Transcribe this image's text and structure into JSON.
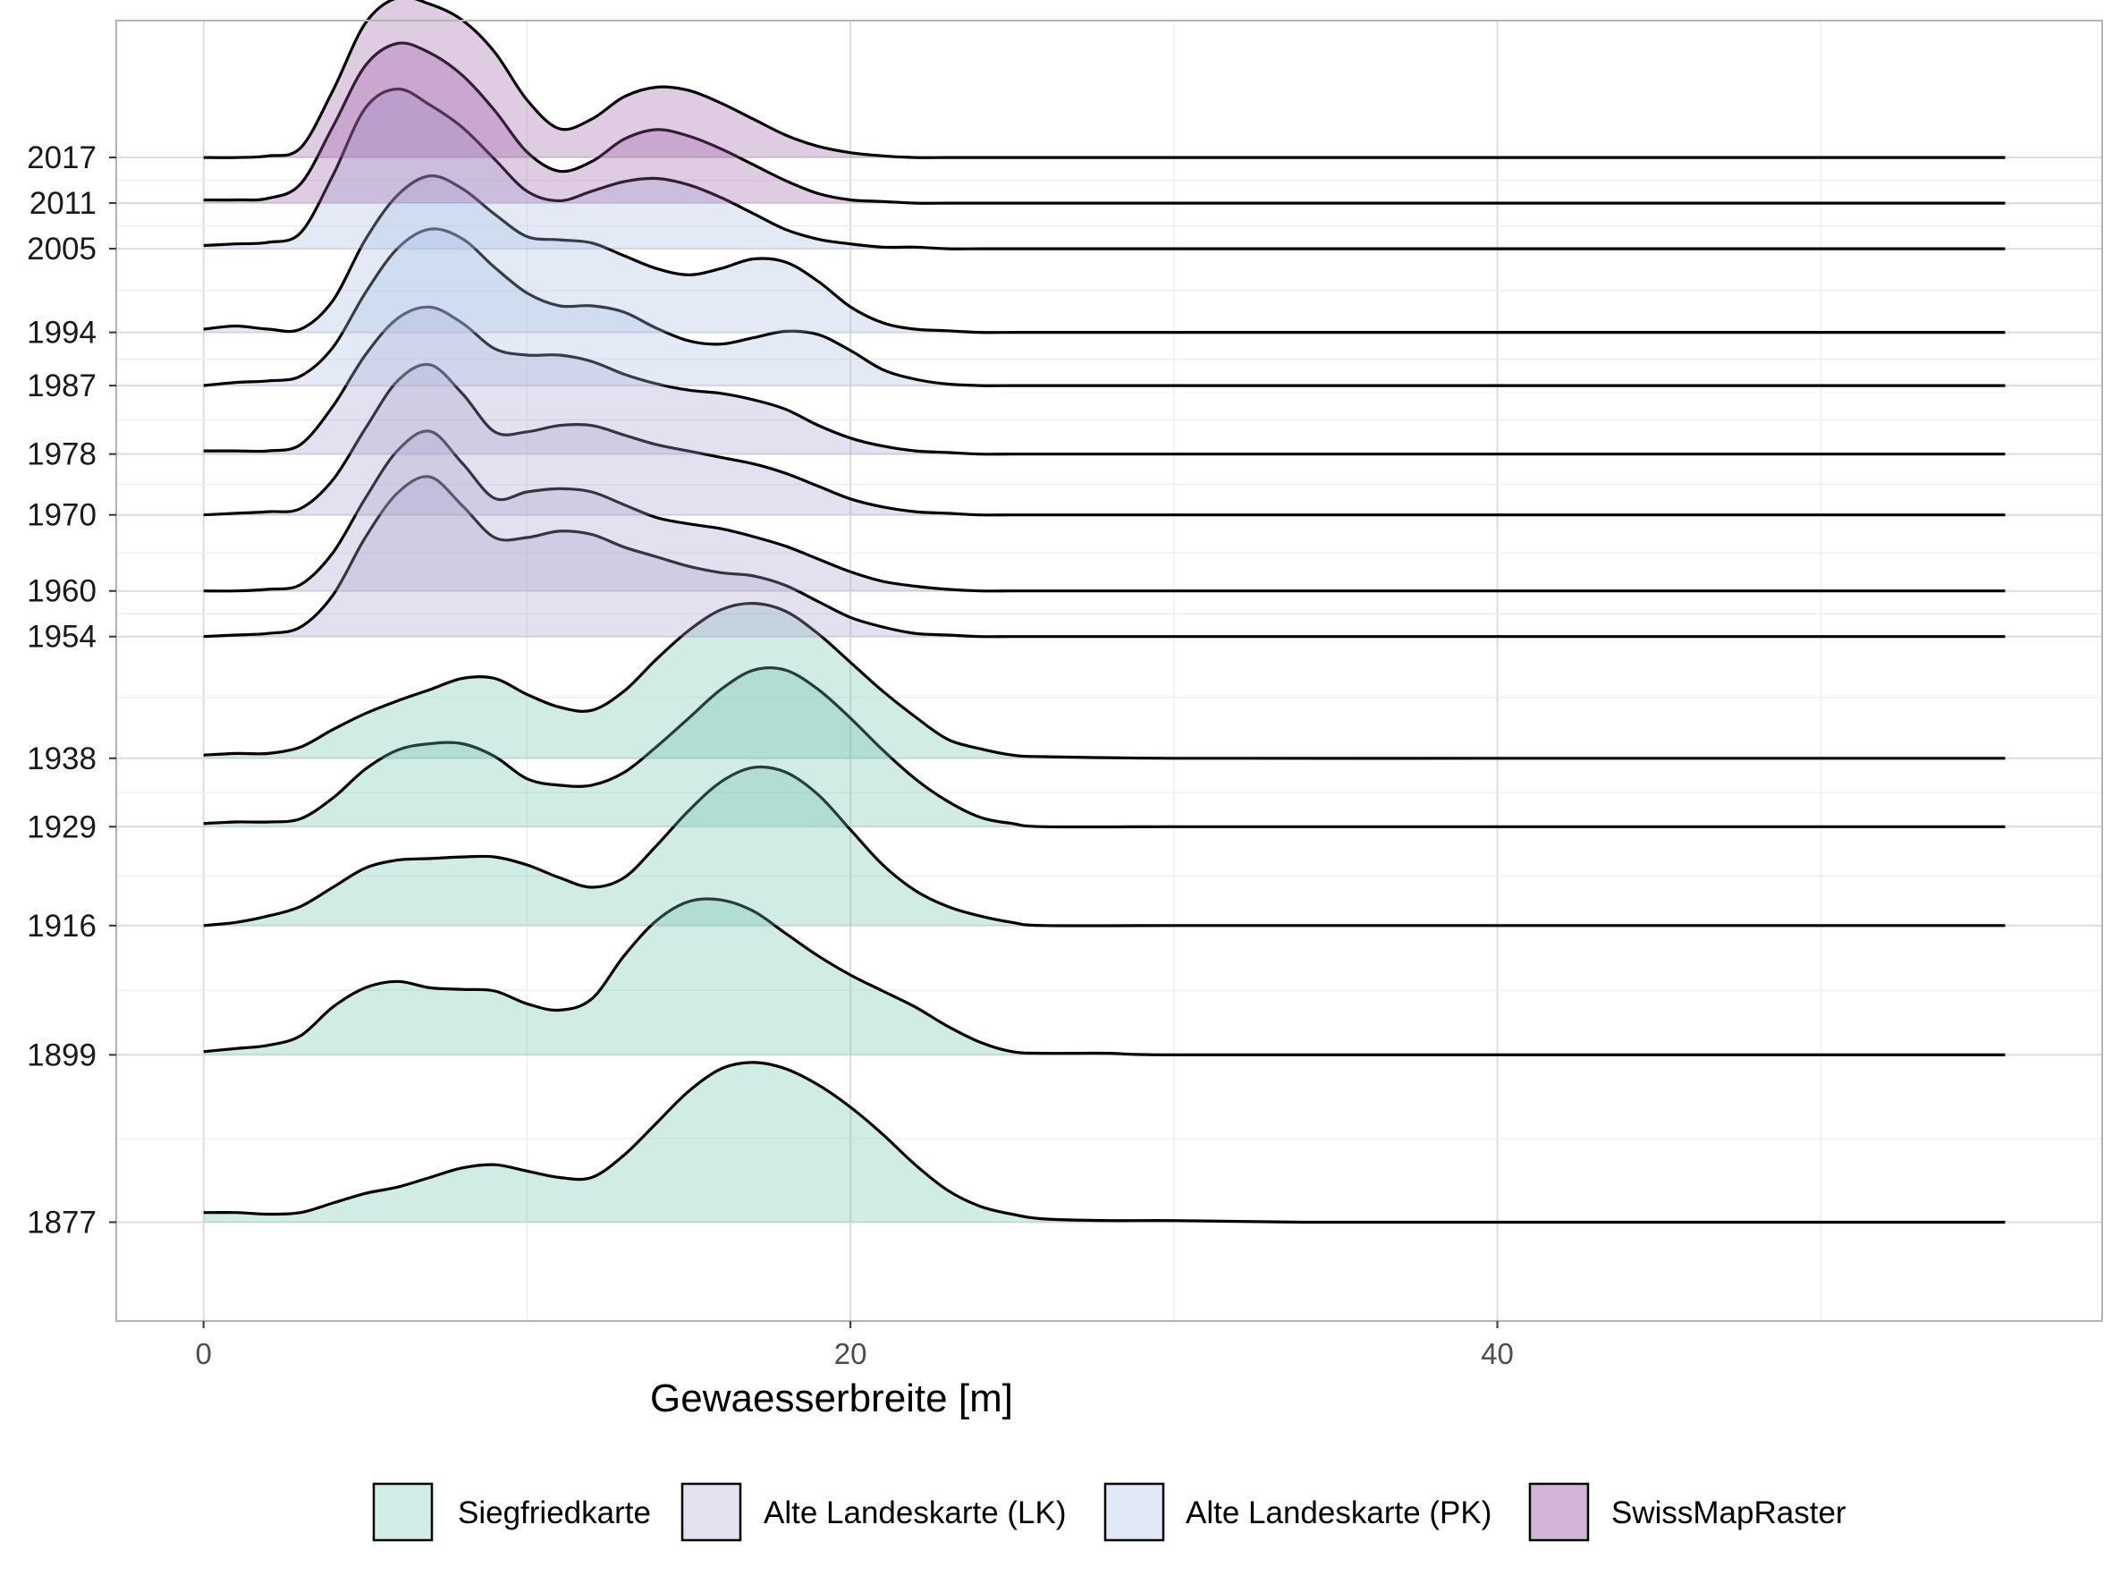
{
  "chart_data": {
    "type": "ridgeline",
    "xlabel": "Gewaesserbreite [m]",
    "ylabel": "",
    "xlim": [
      -2.7,
      58.7
    ],
    "x_ticks": [
      0,
      20,
      40
    ],
    "grid": true,
    "legend_position": "bottom",
    "legend": [
      {
        "name": "Siegfriedkarte",
        "color": "#d2ece7"
      },
      {
        "name": "Alte Landeskarte (LK)",
        "color": "#e3e1ef"
      },
      {
        "name": "Alte Landeskarte (PK)",
        "color": "#e1e9f6"
      },
      {
        "name": "SwissMapRaster",
        "color": "#d4b3d8"
      }
    ],
    "y_categories": [
      "1877",
      "1899",
      "1916",
      "1929",
      "1938",
      "1954",
      "1960",
      "1970",
      "1978",
      "1987",
      "1994",
      "2005",
      "2011",
      "2017"
    ],
    "series": [
      {
        "year": "1877",
        "map": "Siegfriedkarte",
        "x": [
          0,
          1,
          2,
          3,
          4,
          5,
          6,
          7,
          8,
          9,
          10,
          11,
          12,
          13,
          14,
          15,
          16,
          17,
          18,
          19,
          20,
          21,
          22,
          23,
          24,
          25,
          26,
          28,
          30,
          34,
          40,
          50,
          55.7
        ],
        "density": [
          0.06,
          0.06,
          0.05,
          0.06,
          0.12,
          0.18,
          0.22,
          0.28,
          0.34,
          0.36,
          0.32,
          0.28,
          0.28,
          0.42,
          0.62,
          0.82,
          0.96,
          1.0,
          0.96,
          0.86,
          0.72,
          0.55,
          0.36,
          0.2,
          0.1,
          0.05,
          0.02,
          0.01,
          0.01,
          0,
          0,
          0,
          0
        ]
      },
      {
        "year": "1899",
        "map": "Siegfriedkarte",
        "x": [
          0,
          1,
          2,
          3,
          4,
          5,
          6,
          7,
          8,
          9,
          10,
          11,
          12,
          13,
          14,
          15,
          16,
          17,
          18,
          19,
          20,
          21,
          22,
          23,
          24,
          25,
          26,
          28,
          30,
          40,
          55.7
        ],
        "density": [
          0.02,
          0.04,
          0.06,
          0.12,
          0.3,
          0.42,
          0.46,
          0.42,
          0.41,
          0.4,
          0.32,
          0.28,
          0.35,
          0.62,
          0.84,
          0.96,
          0.97,
          0.9,
          0.76,
          0.62,
          0.5,
          0.4,
          0.3,
          0.18,
          0.08,
          0.02,
          0.01,
          0.01,
          0,
          0,
          0
        ]
      },
      {
        "year": "1916",
        "map": "Siegfriedkarte",
        "x": [
          0,
          1,
          2,
          3,
          4,
          5,
          6,
          7,
          8,
          9,
          10,
          11,
          12,
          13,
          14,
          15,
          16,
          17,
          18,
          19,
          20,
          21,
          22,
          23,
          24,
          25,
          26,
          30,
          40,
          55.7
        ],
        "density": [
          0,
          0.02,
          0.06,
          0.12,
          0.24,
          0.36,
          0.41,
          0.42,
          0.43,
          0.43,
          0.38,
          0.3,
          0.24,
          0.3,
          0.5,
          0.72,
          0.9,
          0.99,
          0.96,
          0.82,
          0.6,
          0.38,
          0.22,
          0.12,
          0.06,
          0.02,
          0,
          0,
          0,
          0
        ]
      },
      {
        "year": "1929",
        "map": "Siegfriedkarte",
        "x": [
          0,
          1,
          2,
          3,
          4,
          5,
          6,
          7,
          8,
          9,
          10,
          11,
          12,
          13,
          14,
          15,
          16,
          17,
          18,
          19,
          20,
          21,
          22,
          23,
          24,
          25,
          26,
          30,
          40,
          55.7
        ],
        "density": [
          0.02,
          0.03,
          0.03,
          0.05,
          0.18,
          0.36,
          0.48,
          0.52,
          0.52,
          0.44,
          0.3,
          0.26,
          0.26,
          0.34,
          0.5,
          0.68,
          0.86,
          0.98,
          0.98,
          0.86,
          0.68,
          0.48,
          0.3,
          0.16,
          0.06,
          0.02,
          0,
          0,
          0,
          0
        ]
      },
      {
        "year": "1938",
        "map": "Siegfriedkarte",
        "x": [
          0,
          1,
          2,
          3,
          4,
          5,
          6,
          7,
          8,
          9,
          10,
          11,
          12,
          13,
          14,
          15,
          16,
          17,
          18,
          19,
          20,
          21,
          22,
          23,
          24,
          25,
          26,
          30,
          40,
          50,
          55.7
        ],
        "density": [
          0.02,
          0.03,
          0.03,
          0.07,
          0.18,
          0.28,
          0.36,
          0.43,
          0.5,
          0.5,
          0.4,
          0.32,
          0.3,
          0.42,
          0.62,
          0.8,
          0.93,
          0.97,
          0.92,
          0.78,
          0.6,
          0.42,
          0.26,
          0.12,
          0.06,
          0.02,
          0.01,
          0,
          0,
          0,
          0
        ]
      },
      {
        "year": "1954",
        "map": "Alte Landeskarte (LK)",
        "x": [
          0,
          1,
          2,
          3,
          4,
          5,
          6,
          7,
          8,
          9,
          10,
          11,
          12,
          13,
          14,
          15,
          16,
          17,
          18,
          19,
          20,
          21,
          22,
          23,
          24,
          25,
          26,
          30,
          40,
          55.7
        ],
        "density": [
          0,
          0.01,
          0.02,
          0.06,
          0.26,
          0.62,
          0.9,
          1.0,
          0.82,
          0.62,
          0.62,
          0.66,
          0.64,
          0.56,
          0.5,
          0.44,
          0.4,
          0.38,
          0.32,
          0.22,
          0.12,
          0.06,
          0.02,
          0.01,
          0,
          0,
          0,
          0,
          0,
          0
        ]
      },
      {
        "year": "1960",
        "map": "Alte Landeskarte (LK)",
        "x": [
          0,
          1,
          2,
          3,
          4,
          5,
          6,
          7,
          8,
          9,
          10,
          11,
          12,
          13,
          14,
          15,
          16,
          17,
          18,
          19,
          20,
          21,
          22,
          23,
          24,
          25,
          26,
          30,
          40,
          55.7
        ],
        "density": [
          0,
          0,
          0.01,
          0.04,
          0.24,
          0.58,
          0.88,
          1.0,
          0.8,
          0.58,
          0.62,
          0.64,
          0.62,
          0.54,
          0.46,
          0.42,
          0.39,
          0.34,
          0.28,
          0.2,
          0.12,
          0.06,
          0.03,
          0.01,
          0,
          0,
          0,
          0,
          0,
          0
        ]
      },
      {
        "year": "1970",
        "map": "Alte Landeskarte (LK)",
        "x": [
          0,
          1,
          2,
          3,
          4,
          5,
          6,
          7,
          8,
          9,
          10,
          11,
          12,
          13,
          14,
          15,
          16,
          17,
          18,
          19,
          20,
          21,
          22,
          23,
          24,
          25,
          26,
          30,
          40,
          55.7
        ],
        "density": [
          0,
          0.01,
          0.02,
          0.04,
          0.22,
          0.54,
          0.84,
          0.94,
          0.76,
          0.52,
          0.52,
          0.56,
          0.56,
          0.5,
          0.44,
          0.4,
          0.36,
          0.32,
          0.26,
          0.18,
          0.1,
          0.05,
          0.02,
          0.01,
          0,
          0,
          0,
          0,
          0,
          0
        ]
      },
      {
        "year": "1978",
        "map": "Alte Landeskarte (LK)",
        "x": [
          0,
          1,
          2,
          3,
          4,
          5,
          6,
          7,
          8,
          9,
          10,
          11,
          12,
          13,
          14,
          15,
          16,
          17,
          18,
          19,
          20,
          21,
          22,
          23,
          24,
          25,
          26,
          30,
          40,
          55.7
        ],
        "density": [
          0.02,
          0.02,
          0.02,
          0.06,
          0.3,
          0.62,
          0.85,
          0.92,
          0.82,
          0.66,
          0.62,
          0.62,
          0.58,
          0.5,
          0.44,
          0.4,
          0.38,
          0.34,
          0.28,
          0.18,
          0.1,
          0.05,
          0.02,
          0.01,
          0,
          0,
          0,
          0,
          0,
          0
        ]
      },
      {
        "year": "1987",
        "map": "Alte Landeskarte (PK)",
        "x": [
          0,
          1,
          2,
          3,
          4,
          5,
          6,
          7,
          8,
          9,
          10,
          11,
          12,
          13,
          14,
          15,
          16,
          17,
          18,
          19,
          20,
          21,
          22,
          23,
          24,
          25,
          26,
          30,
          40,
          55.7
        ],
        "density": [
          0,
          0.02,
          0.03,
          0.06,
          0.24,
          0.58,
          0.86,
          0.98,
          0.92,
          0.74,
          0.58,
          0.5,
          0.5,
          0.46,
          0.36,
          0.28,
          0.26,
          0.3,
          0.34,
          0.32,
          0.22,
          0.1,
          0.04,
          0.01,
          0,
          0,
          0,
          0,
          0,
          0
        ]
      },
      {
        "year": "1994",
        "map": "Alte Landeskarte (PK)",
        "x": [
          0,
          1,
          2,
          3,
          4,
          5,
          6,
          7,
          8,
          9,
          10,
          11,
          12,
          13,
          14,
          15,
          16,
          17,
          18,
          19,
          20,
          21,
          22,
          23,
          24,
          25,
          26,
          30,
          40,
          55.7
        ],
        "density": [
          0.02,
          0.04,
          0.02,
          0.02,
          0.2,
          0.58,
          0.86,
          0.98,
          0.9,
          0.74,
          0.6,
          0.58,
          0.56,
          0.48,
          0.4,
          0.36,
          0.4,
          0.46,
          0.44,
          0.32,
          0.16,
          0.06,
          0.02,
          0.01,
          0,
          0,
          0,
          0,
          0,
          0
        ]
      },
      {
        "year": "2005",
        "map": "Alte Landeskarte (PK)",
        "x": [
          0,
          1,
          2,
          3,
          4,
          5,
          6,
          7,
          8,
          9,
          10,
          11,
          12,
          13,
          14,
          15,
          16,
          17,
          18,
          19,
          20,
          21,
          22,
          23,
          24,
          25,
          26,
          30,
          40,
          55.7
        ],
        "density": [
          0.02,
          0.03,
          0.04,
          0.1,
          0.46,
          0.88,
          1.0,
          0.9,
          0.76,
          0.56,
          0.36,
          0.3,
          0.36,
          0.42,
          0.44,
          0.4,
          0.32,
          0.22,
          0.12,
          0.06,
          0.03,
          0.01,
          0.01,
          0,
          0,
          0,
          0,
          0,
          0,
          0
        ]
      },
      {
        "year": "2011",
        "map": "SwissMapRaster",
        "x": [
          0,
          1,
          2,
          3,
          4,
          5,
          6,
          7,
          8,
          9,
          10,
          11,
          12,
          13,
          14,
          15,
          16,
          17,
          18,
          19,
          20,
          21,
          22,
          23,
          24,
          25,
          26,
          30,
          40,
          55.7
        ],
        "density": [
          0.02,
          0.02,
          0.03,
          0.12,
          0.48,
          0.86,
          1.0,
          0.94,
          0.8,
          0.58,
          0.32,
          0.2,
          0.26,
          0.4,
          0.46,
          0.42,
          0.34,
          0.24,
          0.14,
          0.06,
          0.02,
          0.01,
          0,
          0,
          0,
          0,
          0,
          0,
          0,
          0
        ]
      },
      {
        "year": "2017",
        "map": "SwissMapRaster",
        "x": [
          0,
          1,
          2,
          3,
          4,
          5,
          6,
          7,
          8,
          9,
          10,
          11,
          12,
          13,
          14,
          15,
          16,
          17,
          18,
          19,
          20,
          21,
          22,
          23,
          24,
          25,
          26,
          30,
          40,
          55.7
        ],
        "density": [
          0,
          0,
          0.01,
          0.06,
          0.42,
          0.84,
          1.0,
          0.96,
          0.86,
          0.66,
          0.36,
          0.18,
          0.24,
          0.38,
          0.44,
          0.42,
          0.34,
          0.24,
          0.14,
          0.07,
          0.03,
          0.01,
          0,
          0,
          0,
          0,
          0,
          0,
          0,
          0
        ]
      }
    ]
  }
}
